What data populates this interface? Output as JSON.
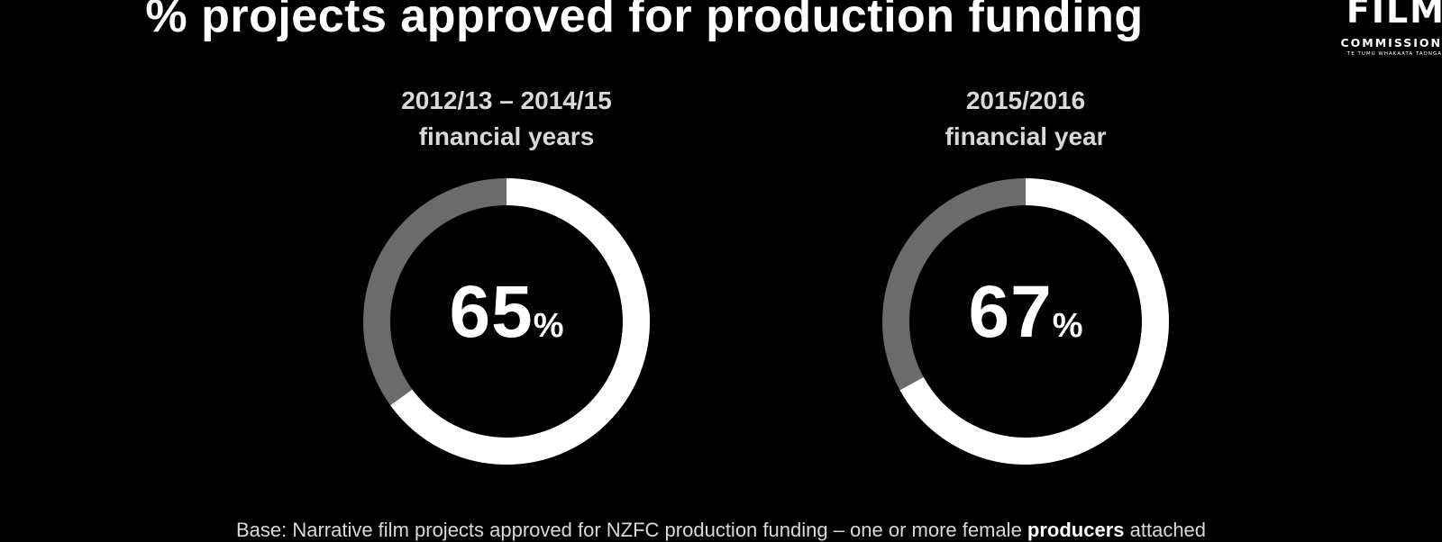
{
  "title": "% projects approved for production funding",
  "logo": {
    "word": "FILM",
    "line2": "COMMISSION",
    "line3": "TE TUMU WHAKAATA TAONGA"
  },
  "colors": {
    "background": "#000000",
    "filled_arc": "#ffffff",
    "remaining_arc": "#6b6b6b"
  },
  "chart_data": [
    {
      "type": "pie",
      "variant": "donut",
      "title_line1": "2012/13 – 2014/15",
      "title_line2": "financial years",
      "value": 65,
      "value_label": "65",
      "unit": "%"
    },
    {
      "type": "pie",
      "variant": "donut",
      "title_line1": "2015/2016",
      "title_line2": "financial year",
      "value": 67,
      "value_label": "67",
      "unit": "%"
    }
  ],
  "footer": {
    "prefix": "Base: Narrative film projects approved for NZFC production funding – one or more female ",
    "highlight": "producers",
    "suffix": " attached"
  }
}
